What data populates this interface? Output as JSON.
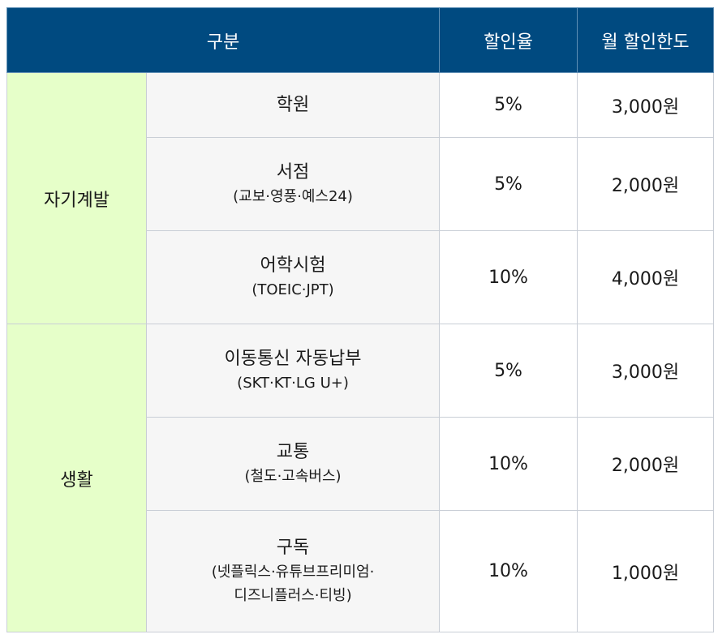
{
  "header": {
    "category": "구분",
    "rate": "할인율",
    "limit": "월 할인한도"
  },
  "groups": [
    {
      "label": "자기계발"
    },
    {
      "label": "생활"
    }
  ],
  "rows": [
    {
      "name": "학원",
      "detail": "",
      "rate": "5%",
      "limit": "3,000원"
    },
    {
      "name": "서점",
      "detail": "(교보·영풍·예스24)",
      "rate": "5%",
      "limit": "2,000원"
    },
    {
      "name": "어학시험",
      "detail": "(TOEIC·JPT)",
      "rate": "10%",
      "limit": "4,000원"
    },
    {
      "name": "이동통신 자동납부",
      "detail": "(SKT·KT·LG U+)",
      "rate": "5%",
      "limit": "3,000원"
    },
    {
      "name": "교통",
      "detail": "(철도·고속버스)",
      "rate": "10%",
      "limit": "2,000원"
    },
    {
      "name": "구독",
      "detail": "(넷플릭스·유튜브프리미엄·",
      "detail2": "디즈니플러스·티빙)",
      "rate": "10%",
      "limit": "1,000원"
    }
  ]
}
